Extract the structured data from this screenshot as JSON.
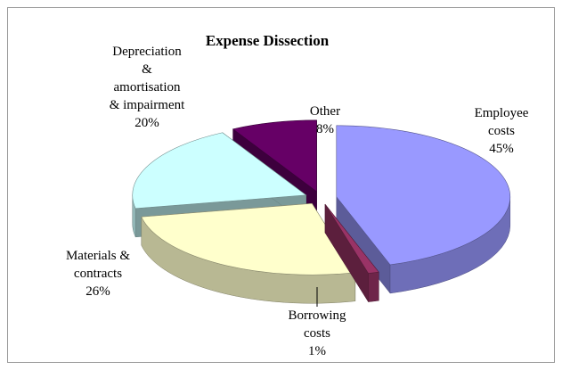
{
  "chart_data": {
    "type": "pie",
    "title": "Expense Dissection",
    "categories": [
      "Employee costs",
      "Borrowing costs",
      "Materials & contracts",
      "Depreciation & amortisation & impairment",
      "Other"
    ],
    "values": [
      45,
      1,
      26,
      20,
      8
    ],
    "value_labels": [
      "45%",
      "1%",
      "26%",
      "20%",
      "8%"
    ],
    "colors": [
      "#9999ff",
      "#993366",
      "#ffffcc",
      "#ccffff",
      "#660066"
    ]
  }
}
